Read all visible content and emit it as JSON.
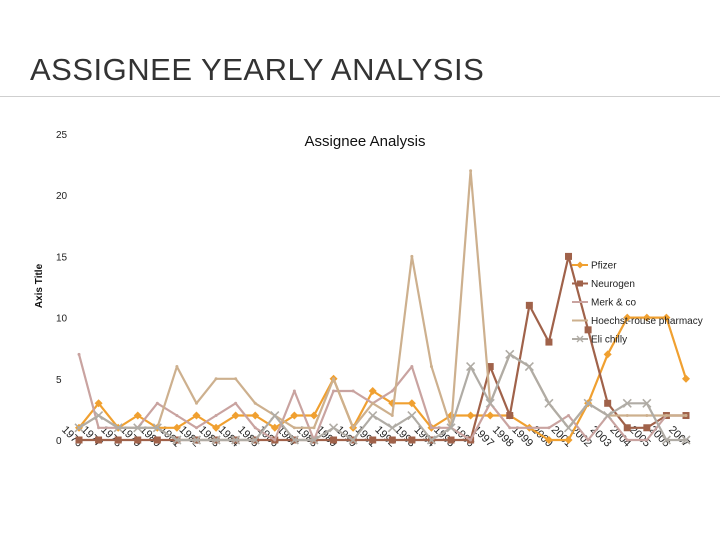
{
  "slide": {
    "title": "ASSIGNEE YEARLY ANALYSIS"
  },
  "chart_data": {
    "type": "line",
    "title": "Assignee Analysis",
    "xlabel": "",
    "ylabel": "Axis Title",
    "ylim": [
      0,
      25
    ],
    "yticks": [
      0,
      5,
      10,
      15,
      20,
      25
    ],
    "grid": false,
    "legend_position": "right",
    "categories": [
      "1976",
      "1977",
      "1978",
      "1979",
      "1980",
      "1981",
      "1982",
      "1983",
      "1984",
      "1985",
      "1986",
      "1987",
      "1988",
      "1989",
      "1990",
      "1991",
      "1992",
      "1993",
      "1994",
      "1995",
      "1996",
      "1997",
      "1998",
      "1999",
      "2000",
      "2001",
      "2002",
      "2003",
      "2004",
      "2005",
      "2006",
      "2007"
    ],
    "series": [
      {
        "name": "Pfizer",
        "color": "#F0A030",
        "marker": "diamond",
        "values": [
          1,
          3,
          1,
          2,
          1,
          1,
          2,
          1,
          2,
          2,
          1,
          2,
          2,
          5,
          1,
          4,
          3,
          3,
          1,
          2,
          2,
          2,
          2,
          1,
          0,
          0,
          3,
          7,
          10,
          10,
          10,
          5
        ]
      },
      {
        "name": "Neurogen",
        "color": "#A0624A",
        "marker": "square",
        "values": [
          0,
          0,
          0,
          0,
          0,
          0,
          0,
          0,
          0,
          0,
          0,
          0,
          0,
          0,
          0,
          0,
          0,
          0,
          0,
          0,
          0,
          6,
          2,
          11,
          8,
          15,
          9,
          3,
          1,
          1,
          2,
          2
        ]
      },
      {
        "name": "Merk & co",
        "color": "#C9A3A0",
        "marker": "none",
        "values": [
          7,
          1,
          1,
          1,
          3,
          2,
          1,
          2,
          3,
          1,
          0,
          4,
          0,
          4,
          4,
          3,
          4,
          6,
          1,
          1,
          0,
          3,
          1,
          1,
          1,
          2,
          0,
          2,
          0,
          0,
          2,
          2
        ]
      },
      {
        "name": "Hoechst-rouse pharmacy",
        "color": "#CDB08E",
        "marker": "none",
        "values": [
          1,
          2,
          1,
          1,
          1,
          6,
          3,
          5,
          5,
          3,
          2,
          1,
          1,
          5,
          1,
          3,
          2,
          15,
          6,
          1,
          22,
          3,
          7,
          6,
          3,
          1,
          3,
          2,
          2,
          2,
          2,
          2
        ]
      },
      {
        "name": "Eli chilly",
        "color": "#B0ACA5",
        "marker": "x",
        "values": [
          1,
          2,
          1,
          1,
          1,
          0,
          0,
          0,
          0,
          0,
          2,
          0,
          0,
          1,
          0,
          2,
          1,
          2,
          0,
          1,
          6,
          3,
          7,
          6,
          3,
          1,
          3,
          2,
          3,
          3,
          0,
          0
        ]
      }
    ]
  }
}
